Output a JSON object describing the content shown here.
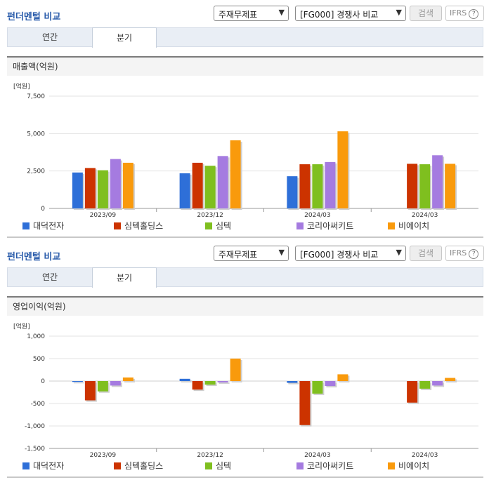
{
  "sections": [
    {
      "header": {
        "title": "펀더멘털 비교",
        "select1": "주재무제표",
        "select2": "[FG000] 경쟁사 비교",
        "search_label": "검색",
        "ifrs_label": "IFRS",
        "help_glyph": "?"
      },
      "tabs": [
        "연간",
        "분기"
      ],
      "active_tab": 1,
      "chart_title": "매출액(억원)",
      "chart_data": {
        "type": "bar",
        "unit": "[억원]",
        "categories": [
          "2023/09",
          "2023/12",
          "2024/03",
          "2024/03"
        ],
        "series": [
          {
            "name": "대덕전자",
            "color": "#2e6fd8",
            "values": [
              2400,
              2350,
              2150,
              null
            ]
          },
          {
            "name": "심텍홀딩스",
            "color": "#cc3300",
            "values": [
              2700,
              3050,
              2950,
              2980
            ]
          },
          {
            "name": "심텍",
            "color": "#7fbf1f",
            "values": [
              2550,
              2850,
              2950,
              2950
            ]
          },
          {
            "name": "코리아써키트",
            "color": "#a57be0",
            "values": [
              3300,
              3500,
              3100,
              3550
            ]
          },
          {
            "name": "비에이치",
            "color": "#f99a0c",
            "values": [
              3050,
              4550,
              5150,
              2980
            ]
          }
        ],
        "ylim": [
          0,
          7500
        ],
        "yticks": [
          "0",
          "2,500",
          "5,000",
          "7,500"
        ],
        "ytick_values": [
          0,
          2500,
          5000,
          7500
        ]
      }
    },
    {
      "header": {
        "title": "펀더멘털 비교",
        "select1": "주재무제표",
        "select2": "[FG000] 경쟁사 비교",
        "search_label": "검색",
        "ifrs_label": "IFRS",
        "help_glyph": "?"
      },
      "tabs": [
        "연간",
        "분기"
      ],
      "active_tab": 1,
      "chart_title": "영업이익(억원)",
      "chart_data": {
        "type": "bar",
        "unit": "[억원]",
        "categories": [
          "2023/09",
          "2023/12",
          "2024/03",
          "2024/03"
        ],
        "series": [
          {
            "name": "대덕전자",
            "color": "#2e6fd8",
            "values": [
              -20,
              50,
              -40,
              null
            ]
          },
          {
            "name": "심텍홀딩스",
            "color": "#cc3300",
            "values": [
              -430,
              -190,
              -980,
              -480
            ]
          },
          {
            "name": "심텍",
            "color": "#7fbf1f",
            "values": [
              -230,
              -80,
              -280,
              -170
            ]
          },
          {
            "name": "코리아써키트",
            "color": "#a57be0",
            "values": [
              -100,
              -30,
              -110,
              -100
            ]
          },
          {
            "name": "비에이치",
            "color": "#f99a0c",
            "values": [
              80,
              500,
              150,
              70
            ]
          }
        ],
        "ylim": [
          -1500,
          1000
        ],
        "yticks": [
          "1,000",
          "500",
          "0",
          "-500",
          "-1,000",
          "-1,500"
        ],
        "ytick_values": [
          1000,
          500,
          0,
          -500,
          -1000,
          -1500
        ]
      }
    }
  ]
}
